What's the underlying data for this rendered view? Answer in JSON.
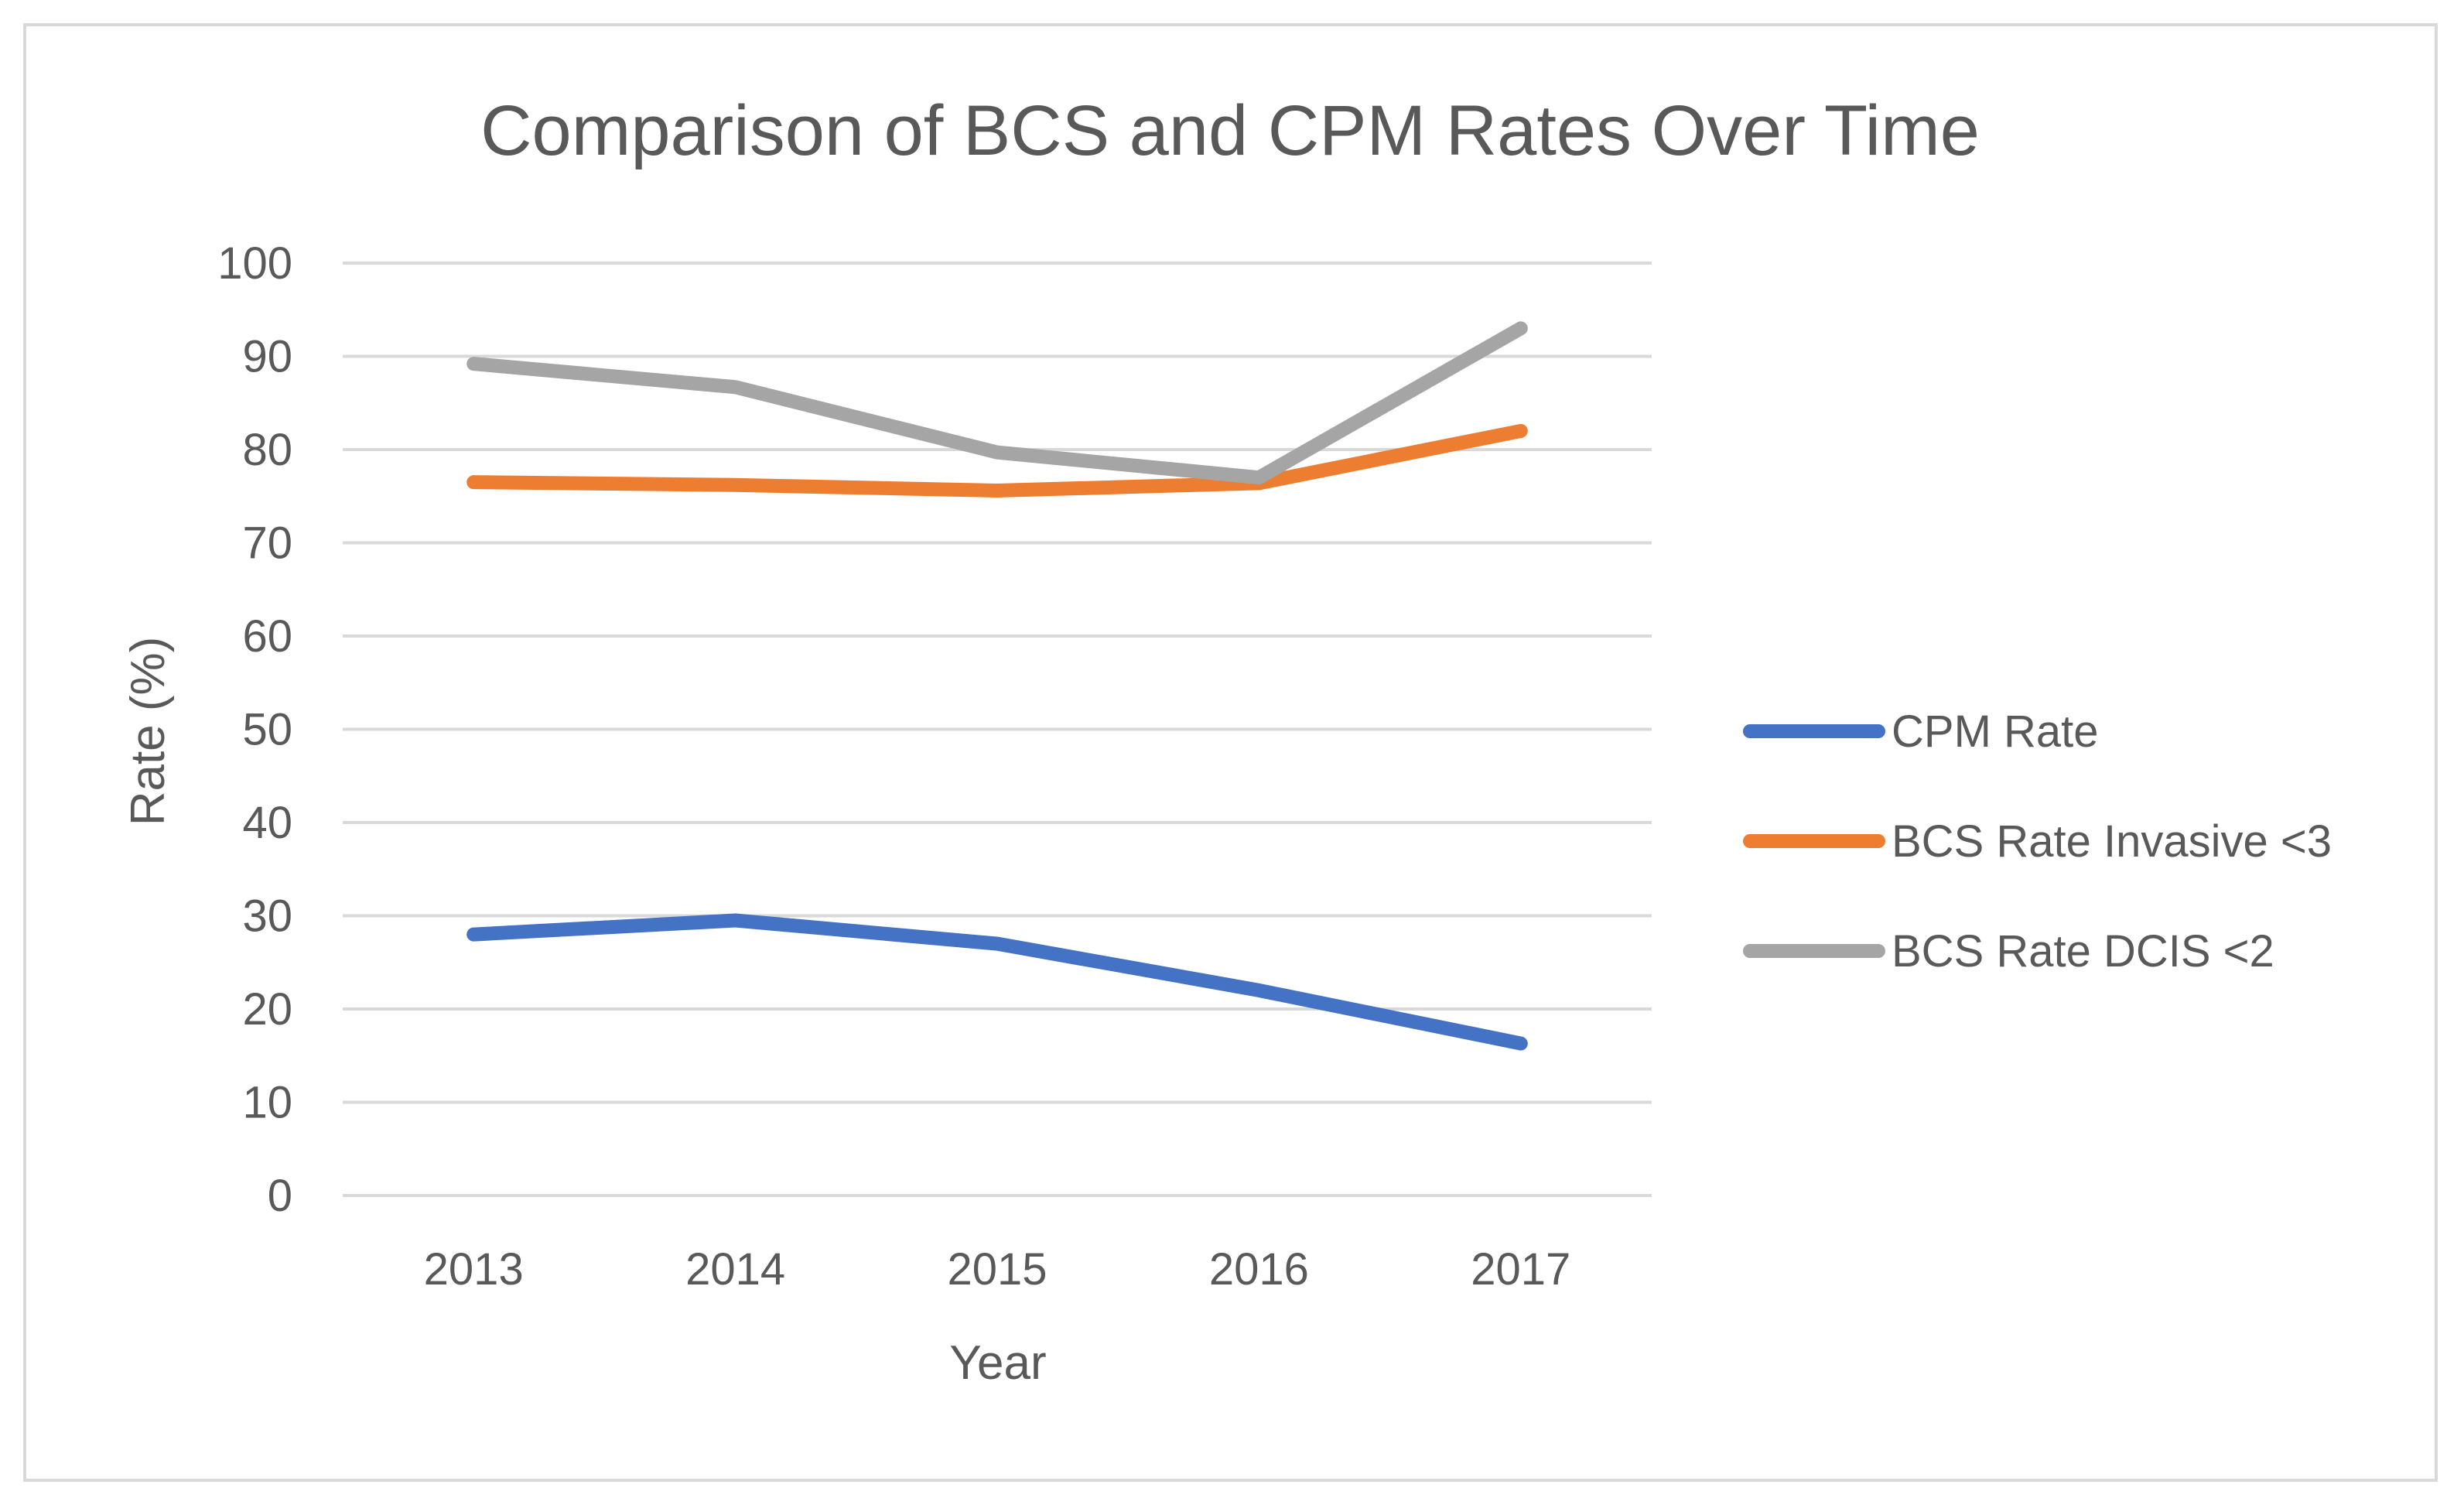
{
  "chart_data": {
    "type": "line",
    "title": "Comparison of BCS and CPM Rates Over Time",
    "xlabel": "Year",
    "ylabel": "Rate (%)",
    "categories": [
      "2013",
      "2014",
      "2015",
      "2016",
      "2017"
    ],
    "ylim": [
      0,
      100
    ],
    "yticks": [
      "0",
      "10",
      "20",
      "30",
      "40",
      "50",
      "60",
      "70",
      "80",
      "90",
      "100"
    ],
    "grid": true,
    "legend_position": "right",
    "series": [
      {
        "name": "CPM Rate",
        "color": "#4472c4",
        "values": [
          28,
          29.5,
          27,
          22,
          16.3
        ]
      },
      {
        "name": "BCS Rate Invasive <3",
        "color": "#ed7d31",
        "values": [
          76.5,
          76.2,
          75.6,
          76.4,
          82
        ]
      },
      {
        "name": "BCS Rate DCIS <2",
        "color": "#a5a5a5",
        "values": [
          89.2,
          86.7,
          79.7,
          77,
          93
        ]
      }
    ]
  }
}
